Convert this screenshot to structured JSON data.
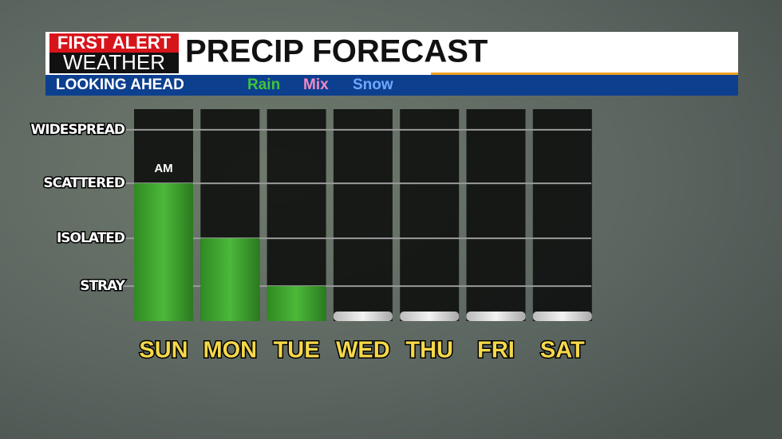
{
  "chart_data": {
    "type": "bar",
    "brand": [
      "FIRST ALERT",
      "WEATHER"
    ],
    "title": "PRECIP FORECAST",
    "subtitle": "LOOKING AHEAD",
    "legend": [
      {
        "name": "Rain",
        "color": "#3fc43a"
      },
      {
        "name": "Mix",
        "color": "#f08ac0"
      },
      {
        "name": "Snow",
        "color": "#6fa8ff"
      }
    ],
    "categories": [
      "SUN",
      "MON",
      "TUE",
      "WED",
      "THU",
      "FRI",
      "SAT"
    ],
    "values": [
      2.88,
      1.73,
      0.73,
      0,
      0,
      0,
      0
    ],
    "color": "#3a9e2a",
    "annotations": [
      {
        "text": "AM",
        "category": "SUN"
      }
    ],
    "ylim": [
      0,
      4.43
    ],
    "yticks": [
      {
        "value": 0.73,
        "label": "STRAY"
      },
      {
        "value": 1.73,
        "label": "ISOLATED"
      },
      {
        "value": 2.88,
        "label": "SCATTERED"
      },
      {
        "value": 4.0,
        "label": "WIDESPREAD"
      }
    ],
    "grid": true
  }
}
